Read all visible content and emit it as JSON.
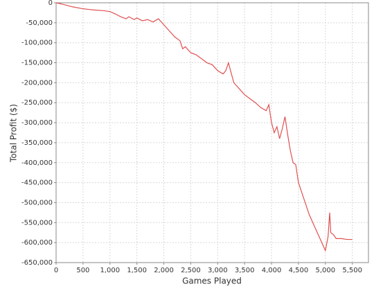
{
  "chart_data": {
    "type": "line",
    "x_label": "Games Played",
    "y_label": "Total Profit ($)",
    "xlim": [
      0,
      5800
    ],
    "ylim": [
      -650000,
      0
    ],
    "grid": true,
    "xticks": [
      0,
      500,
      {
        "value": 1000,
        "label": "1,000"
      },
      {
        "value": 1500,
        "label": "1,500"
      },
      {
        "value": 2000,
        "label": "2,000"
      },
      {
        "value": 2500,
        "label": "2,500"
      },
      {
        "value": 3000,
        "label": "3,000"
      },
      {
        "value": 3500,
        "label": "3,500"
      },
      {
        "value": 4000,
        "label": "4,000"
      },
      {
        "value": 4500,
        "label": "4,500"
      },
      {
        "value": 5000,
        "label": "5,000"
      },
      {
        "value": 5500,
        "label": "5,500"
      }
    ],
    "yticks": [
      0,
      {
        "value": -50000,
        "label": "-50,000"
      },
      {
        "value": -100000,
        "label": "-100,000"
      },
      {
        "value": -150000,
        "label": "-150,000"
      },
      {
        "value": -200000,
        "label": "-200,000"
      },
      {
        "value": -250000,
        "label": "-250,000"
      },
      {
        "value": -300000,
        "label": "-300,000"
      },
      {
        "value": -350000,
        "label": "-350,000"
      },
      {
        "value": -400000,
        "label": "-400,000"
      },
      {
        "value": -450000,
        "label": "-450,000"
      },
      {
        "value": -500000,
        "label": "-500,000"
      },
      {
        "value": -550000,
        "label": "-550,000"
      },
      {
        "value": -600000,
        "label": "-600,000"
      },
      {
        "value": -650000,
        "label": "-650,000"
      }
    ],
    "x": [
      0,
      100,
      300,
      500,
      700,
      900,
      1000,
      1100,
      1200,
      1300,
      1350,
      1450,
      1500,
      1600,
      1700,
      1800,
      1900,
      2000,
      2100,
      2200,
      2300,
      2350,
      2400,
      2500,
      2600,
      2700,
      2800,
      2900,
      3000,
      3100,
      3150,
      3200,
      3250,
      3300,
      3400,
      3500,
      3600,
      3700,
      3800,
      3900,
      3950,
      4000,
      4050,
      4100,
      4150,
      4200,
      4250,
      4300,
      4350,
      4400,
      4450,
      4500,
      4600,
      4700,
      4800,
      4900,
      4950,
      5000,
      5050,
      5080,
      5100,
      5150,
      5200,
      5300,
      5400,
      5500
    ],
    "series": [
      {
        "color": "#e05050",
        "values": [
          0,
          -3000,
          -10000,
          -15000,
          -18000,
          -20000,
          -22000,
          -28000,
          -35000,
          -40000,
          -35000,
          -42000,
          -38000,
          -45000,
          -42000,
          -48000,
          -40000,
          -55000,
          -70000,
          -85000,
          -95000,
          -115000,
          -110000,
          -125000,
          -130000,
          -140000,
          -150000,
          -155000,
          -170000,
          -178000,
          -170000,
          -150000,
          -175000,
          -200000,
          -215000,
          -230000,
          -240000,
          -250000,
          -262000,
          -270000,
          -255000,
          -300000,
          -325000,
          -310000,
          -340000,
          -315000,
          -285000,
          -330000,
          -370000,
          -400000,
          -405000,
          -450000,
          -490000,
          -530000,
          -560000,
          -590000,
          -605000,
          -620000,
          -585000,
          -525000,
          -575000,
          -580000,
          -590000,
          -590000,
          -592000,
          -592000
        ]
      }
    ]
  }
}
